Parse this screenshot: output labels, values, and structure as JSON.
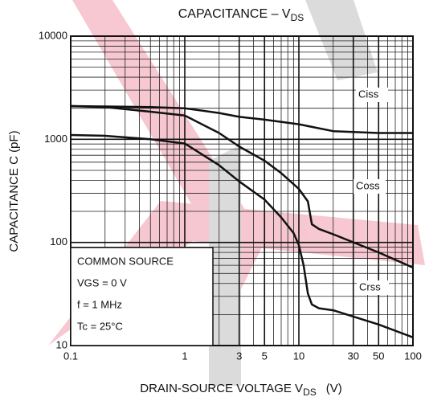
{
  "chart_data": {
    "type": "line",
    "title": {
      "text": "CAPACITANCE – V",
      "sub": "DS"
    },
    "x_label": {
      "text": "DRAIN-SOURCE VOLTAGE  V",
      "sub": "DS",
      "unit": "(V)"
    },
    "y_label": "CAPACITANCE   C   (pF)",
    "xlog": true,
    "ylog": true,
    "grid": true,
    "minor_grid": true,
    "xlim": [
      0.1,
      100
    ],
    "ylim": [
      10,
      10000
    ],
    "xticks": [
      0.1,
      1,
      3,
      5,
      10,
      30,
      50,
      100
    ],
    "yticks": [
      10,
      100,
      1000,
      10000
    ],
    "series": [
      {
        "name": "Ciss",
        "color": "#111111",
        "x": [
          0.1,
          0.2,
          0.5,
          1,
          2,
          3,
          5,
          10,
          20,
          50,
          100
        ],
        "values": [
          2100,
          2080,
          2050,
          2000,
          1800,
          1650,
          1550,
          1400,
          1200,
          1150,
          1150
        ]
      },
      {
        "name": "Coss",
        "color": "#111111",
        "x": [
          0.1,
          0.2,
          0.5,
          1,
          2,
          3,
          5,
          7,
          10,
          12,
          13,
          15,
          20,
          50,
          100
        ],
        "values": [
          2100,
          2050,
          1850,
          1700,
          1150,
          850,
          620,
          470,
          330,
          250,
          150,
          135,
          120,
          80,
          57
        ]
      },
      {
        "name": "Crss",
        "color": "#111111",
        "x": [
          0.1,
          0.2,
          0.5,
          1,
          2,
          3,
          5,
          7,
          9,
          10,
          11,
          12,
          13,
          15,
          20,
          50,
          100
        ],
        "values": [
          1100,
          1080,
          1000,
          910,
          560,
          390,
          260,
          175,
          123,
          94,
          60,
          32,
          25,
          23,
          22,
          16,
          12
        ]
      }
    ],
    "annotation": [
      "COMMON SOURCE",
      "VGS = 0 V",
      "f = 1 MHz",
      "Tc = 25°C"
    ]
  }
}
